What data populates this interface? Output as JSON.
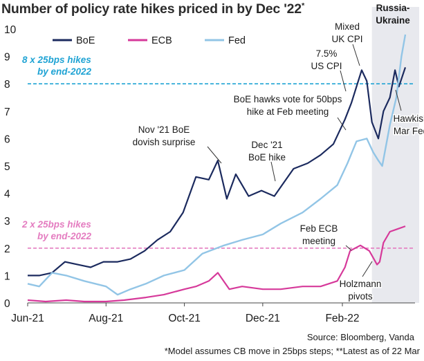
{
  "title": "Number of policy rate hikes priced in by Dec '22",
  "title_marker": "*",
  "chart_data": {
    "type": "line",
    "x_start": "2021-06-01",
    "x_end": "2022-03-22",
    "x_tick_labels": [
      {
        "date": "2021-06-01",
        "label": "Jun-21"
      },
      {
        "date": "2021-08-01",
        "label": "Aug-21"
      },
      {
        "date": "2021-10-01",
        "label": "Oct-21"
      },
      {
        "date": "2021-12-01",
        "label": "Dec-21"
      },
      {
        "date": "2022-02-01",
        "label": "Feb-22"
      }
    ],
    "ylim": [
      0,
      10
    ],
    "y_ticks": [
      0,
      1,
      2,
      3,
      4,
      5,
      6,
      7,
      8,
      9,
      10
    ],
    "legend": {
      "position": "top-left",
      "entries": [
        "BoE",
        "ECB",
        "Fed"
      ]
    },
    "series": [
      {
        "name": "BoE",
        "color": "#1b2a5e",
        "points": [
          [
            "2021-06-01",
            1.0
          ],
          [
            "2021-06-10",
            1.0
          ],
          [
            "2021-06-20",
            1.1
          ],
          [
            "2021-06-30",
            1.5
          ],
          [
            "2021-07-10",
            1.4
          ],
          [
            "2021-07-20",
            1.3
          ],
          [
            "2021-07-30",
            1.5
          ],
          [
            "2021-08-10",
            1.5
          ],
          [
            "2021-08-20",
            1.6
          ],
          [
            "2021-08-31",
            1.9
          ],
          [
            "2021-09-10",
            2.3
          ],
          [
            "2021-09-20",
            2.6
          ],
          [
            "2021-09-30",
            3.3
          ],
          [
            "2021-10-10",
            4.6
          ],
          [
            "2021-10-20",
            4.5
          ],
          [
            "2021-10-27",
            5.2
          ],
          [
            "2021-11-03",
            3.8
          ],
          [
            "2021-11-10",
            4.7
          ],
          [
            "2021-11-20",
            3.9
          ],
          [
            "2021-11-30",
            4.1
          ],
          [
            "2021-12-10",
            3.9
          ],
          [
            "2021-12-16",
            4.3
          ],
          [
            "2021-12-25",
            4.9
          ],
          [
            "2022-01-05",
            5.1
          ],
          [
            "2022-01-15",
            5.4
          ],
          [
            "2022-01-25",
            5.8
          ],
          [
            "2022-02-03",
            6.7
          ],
          [
            "2022-02-08",
            7.3
          ],
          [
            "2022-02-16",
            8.5
          ],
          [
            "2022-02-20",
            8.1
          ],
          [
            "2022-02-24",
            6.6
          ],
          [
            "2022-03-01",
            6.0
          ],
          [
            "2022-03-05",
            7.0
          ],
          [
            "2022-03-10",
            7.5
          ],
          [
            "2022-03-14",
            8.5
          ],
          [
            "2022-03-17",
            7.9
          ],
          [
            "2022-03-22",
            8.6
          ]
        ]
      },
      {
        "name": "ECB",
        "color": "#d6399a",
        "points": [
          [
            "2021-06-01",
            0.1
          ],
          [
            "2021-06-15",
            0.05
          ],
          [
            "2021-07-01",
            0.1
          ],
          [
            "2021-07-15",
            0.05
          ],
          [
            "2021-08-01",
            0.05
          ],
          [
            "2021-08-15",
            0.1
          ],
          [
            "2021-09-01",
            0.2
          ],
          [
            "2021-09-15",
            0.3
          ],
          [
            "2021-10-01",
            0.5
          ],
          [
            "2021-10-10",
            0.6
          ],
          [
            "2021-10-20",
            0.8
          ],
          [
            "2021-10-27",
            1.1
          ],
          [
            "2021-11-05",
            0.5
          ],
          [
            "2021-11-15",
            0.6
          ],
          [
            "2021-12-01",
            0.5
          ],
          [
            "2021-12-15",
            0.5
          ],
          [
            "2022-01-01",
            0.6
          ],
          [
            "2022-01-15",
            0.6
          ],
          [
            "2022-01-28",
            0.8
          ],
          [
            "2022-02-03",
            1.3
          ],
          [
            "2022-02-07",
            1.9
          ],
          [
            "2022-02-15",
            2.1
          ],
          [
            "2022-02-22",
            1.9
          ],
          [
            "2022-02-28",
            1.4
          ],
          [
            "2022-03-02",
            1.5
          ],
          [
            "2022-03-05",
            2.2
          ],
          [
            "2022-03-10",
            2.6
          ],
          [
            "2022-03-16",
            2.7
          ],
          [
            "2022-03-22",
            2.8
          ]
        ]
      },
      {
        "name": "Fed",
        "color": "#92c5e6",
        "points": [
          [
            "2021-06-01",
            0.7
          ],
          [
            "2021-06-10",
            0.6
          ],
          [
            "2021-06-20",
            1.1
          ],
          [
            "2021-07-01",
            1.0
          ],
          [
            "2021-07-15",
            0.8
          ],
          [
            "2021-08-01",
            0.6
          ],
          [
            "2021-08-10",
            0.3
          ],
          [
            "2021-08-20",
            0.5
          ],
          [
            "2021-09-01",
            0.7
          ],
          [
            "2021-09-15",
            1.0
          ],
          [
            "2021-10-01",
            1.2
          ],
          [
            "2021-10-15",
            1.8
          ],
          [
            "2021-11-01",
            2.1
          ],
          [
            "2021-11-15",
            2.3
          ],
          [
            "2021-12-01",
            2.5
          ],
          [
            "2021-12-15",
            2.9
          ],
          [
            "2022-01-01",
            3.3
          ],
          [
            "2022-01-15",
            3.8
          ],
          [
            "2022-01-28",
            4.3
          ],
          [
            "2022-02-05",
            5.1
          ],
          [
            "2022-02-12",
            5.9
          ],
          [
            "2022-02-20",
            6.0
          ],
          [
            "2022-02-25",
            5.5
          ],
          [
            "2022-03-01",
            5.2
          ],
          [
            "2022-03-04",
            5.0
          ],
          [
            "2022-03-10",
            6.5
          ],
          [
            "2022-03-15",
            7.5
          ],
          [
            "2022-03-19",
            9.0
          ],
          [
            "2022-03-22",
            9.8
          ]
        ]
      }
    ],
    "reference_lines": [
      {
        "y": 8,
        "color": "#1fa3d4",
        "label_lines": [
          "8 x 25bps hikes",
          "by end-2022"
        ]
      },
      {
        "y": 2,
        "color": "#e47cc0",
        "label_lines": [
          "2 x 25bps hikes",
          "by end-2022"
        ]
      }
    ],
    "shaded_region": {
      "from": "2022-02-24",
      "to": "2022-03-22",
      "color": "#e8e9ee",
      "label_lines": [
        "Russia-",
        "Ukraine"
      ]
    },
    "annotations": [
      {
        "lines": [
          "Mixed",
          "UK CPI"
        ]
      },
      {
        "lines": [
          "7.5%",
          "US CPI"
        ]
      },
      {
        "lines": [
          "BoE hawks vote for 50bps",
          "hike at Feb meeting"
        ]
      },
      {
        "lines": [
          "Nov '21 BoE",
          "dovish surprise"
        ]
      },
      {
        "lines": [
          "Dec '21",
          "BoE hike"
        ]
      },
      {
        "lines": [
          "Hawkish",
          "Mar Fed"
        ]
      },
      {
        "lines": [
          "Feb ECB",
          "meeting"
        ]
      },
      {
        "lines": [
          "Holzmann",
          "pivots"
        ]
      }
    ]
  },
  "source": "Source: Bloomberg, Vanda",
  "footnote": "*Model assumes CB move in 25bps steps; **Latest as of 22 Mar"
}
